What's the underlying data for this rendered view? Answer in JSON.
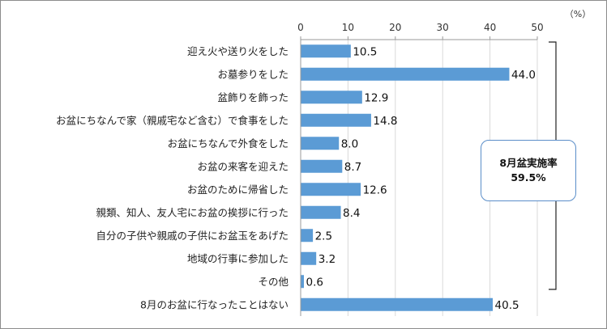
{
  "chart_data": {
    "type": "bar",
    "orientation": "horizontal",
    "unit": "（%）",
    "xlim": [
      0,
      50
    ],
    "x_ticks": [
      0,
      10,
      20,
      30,
      40,
      50
    ],
    "categories": [
      "迎え火や送り火をした",
      "お墓参りをした",
      "盆飾りを飾った",
      "お盆にちなんで家（親戚宅など含む）で食事をした",
      "お盆にちなんで外食をした",
      "お盆の来客を迎えた",
      "お盆のために帰省した",
      "親類、知人、友人宅にお盆の挨拶に行った",
      "自分の子供や親戚の子供にお盆玉をあげた",
      "地域の行事に参加した",
      "その他",
      "8月のお盆に行なったことはない"
    ],
    "values": [
      10.5,
      44.0,
      12.9,
      14.8,
      8.0,
      8.7,
      12.6,
      8.4,
      2.5,
      3.2,
      0.6,
      40.5
    ],
    "value_labels": [
      "10.5",
      "44.0",
      "12.9",
      "14.8",
      "8.0",
      "8.7",
      "12.6",
      "8.4",
      "2.5",
      "3.2",
      "0.6",
      "40.5"
    ],
    "bar_color": "#5b9bd5",
    "grid": true,
    "annotation": {
      "line1": "8月盆実施率",
      "line2": "59.5%"
    }
  }
}
